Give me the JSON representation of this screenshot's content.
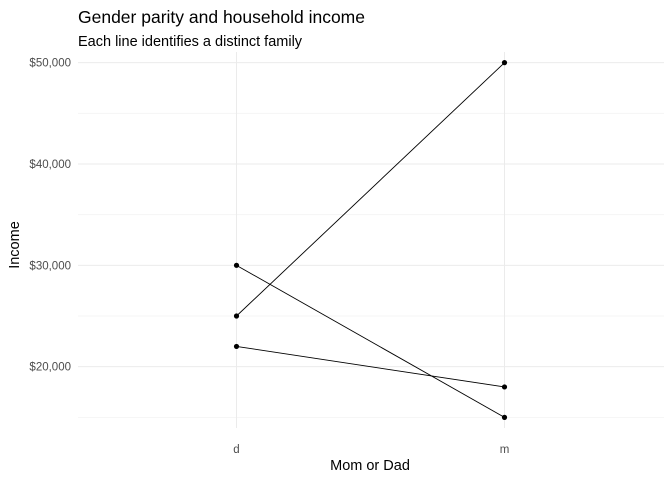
{
  "chart_data": {
    "type": "line",
    "title": "Gender parity and household income",
    "subtitle": "Each line identifies a distinct family",
    "xlabel": "Mom or Dad",
    "ylabel": "Income",
    "categories": [
      "d",
      "m"
    ],
    "y_ticks": [
      20000,
      30000,
      40000,
      50000
    ],
    "y_tick_labels": [
      "$20,000",
      "$30,000",
      "$40,000",
      "$50,000"
    ],
    "ylim": [
      13950,
      51050
    ],
    "grid": true,
    "legend": "none",
    "series": [
      {
        "values": [
          25000,
          50000
        ]
      },
      {
        "values": [
          30000,
          15000
        ]
      },
      {
        "values": [
          22000,
          18000
        ]
      }
    ],
    "colors": {
      "line": "#000000",
      "point": "#000000",
      "grid": "#ebebeb",
      "tick_text": "#4d4d4d"
    }
  }
}
